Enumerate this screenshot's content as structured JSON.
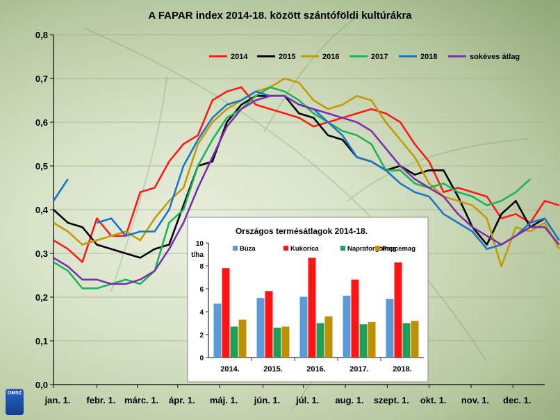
{
  "chart_data": [
    {
      "type": "line",
      "title": "A FAPAR index 2014-18. között szántóföldi kultúrákra",
      "ylim": [
        0,
        0.8
      ],
      "yticks": [
        "0,0",
        "0,1",
        "0,2",
        "0,3",
        "0,4",
        "0,5",
        "0,6",
        "0,7",
        "0,8"
      ],
      "xlim": [
        0,
        34
      ],
      "x_tick_labels": [
        "jan. 1.",
        "febr. 1.",
        "márc. 1.",
        "ápr. 1.",
        "máj. 1.",
        "jún. 1.",
        "júl. 1.",
        "aug. 1.",
        "szept. 1.",
        "okt. 1.",
        "nov. 1.",
        "dec. 1."
      ],
      "x_tick_positions": [
        0,
        3,
        5.8,
        8.6,
        11.5,
        14.5,
        17.3,
        20.2,
        23.1,
        26,
        28.9,
        31.8
      ],
      "legend_position": "top-right",
      "grid": "horizontal",
      "series": [
        {
          "name": "2014",
          "color": "#ff1a1a",
          "values": [
            0.33,
            0.31,
            0.28,
            0.38,
            0.34,
            0.34,
            0.44,
            0.45,
            0.51,
            0.55,
            0.57,
            0.65,
            0.67,
            0.68,
            0.64,
            0.63,
            0.62,
            0.61,
            0.59,
            0.6,
            0.61,
            0.62,
            0.63,
            0.62,
            0.6,
            0.55,
            0.51,
            0.44,
            0.45,
            0.44,
            0.43,
            0.38,
            0.39,
            0.37,
            0.42,
            0.41
          ]
        },
        {
          "name": "2015",
          "color": "#000000",
          "values": [
            0.4,
            0.37,
            0.36,
            0.32,
            0.31,
            0.3,
            0.29,
            0.31,
            0.32,
            0.41,
            0.5,
            0.51,
            0.6,
            0.64,
            0.66,
            0.66,
            0.66,
            0.62,
            0.61,
            0.57,
            0.56,
            0.52,
            0.51,
            0.49,
            0.5,
            0.48,
            0.49,
            0.49,
            0.43,
            0.36,
            0.32,
            0.39,
            0.42,
            0.36,
            0.38
          ]
        },
        {
          "name": "2016",
          "color": "#c49a00",
          "values": [
            0.37,
            0.35,
            0.32,
            0.33,
            0.34,
            0.35,
            0.33,
            0.38,
            0.42,
            0.45,
            0.55,
            0.6,
            0.63,
            0.65,
            0.67,
            0.68,
            0.7,
            0.69,
            0.65,
            0.63,
            0.64,
            0.66,
            0.65,
            0.6,
            0.56,
            0.52,
            0.46,
            0.43,
            0.42,
            0.41,
            0.38,
            0.27,
            0.36,
            0.35,
            0.37,
            0.31
          ]
        },
        {
          "name": "2017",
          "color": "#1db35a",
          "values": [
            0.28,
            0.26,
            0.22,
            0.22,
            0.23,
            0.24,
            0.23,
            0.26,
            0.37,
            0.4,
            0.5,
            0.56,
            0.61,
            0.63,
            0.66,
            0.68,
            0.67,
            0.65,
            0.62,
            0.6,
            0.58,
            0.57,
            0.55,
            0.49,
            0.49,
            0.46,
            0.45,
            0.46,
            0.44,
            0.43,
            0.41,
            0.42,
            0.44,
            0.47
          ]
        },
        {
          "name": "2018",
          "color": "#1a75c9",
          "values": [
            0.42,
            0.47,
            null,
            0.37,
            0.38,
            0.34,
            0.35,
            0.35,
            0.4,
            0.5,
            0.56,
            0.61,
            0.64,
            0.65,
            0.67,
            0.66,
            0.66,
            0.64,
            0.63,
            0.6,
            0.57,
            0.52,
            0.51,
            0.49,
            0.46,
            0.44,
            0.43,
            0.39,
            0.37,
            0.35,
            0.31,
            0.32,
            0.34,
            0.37,
            0.38,
            0.33
          ]
        },
        {
          "name": "sokéves átlag",
          "color": "#7b2fb0",
          "values": [
            0.29,
            0.27,
            0.24,
            0.24,
            0.23,
            0.23,
            0.24,
            0.26,
            0.31,
            0.37,
            0.45,
            0.52,
            0.59,
            0.63,
            0.65,
            0.66,
            0.66,
            0.64,
            0.63,
            0.62,
            0.61,
            0.6,
            0.58,
            0.54,
            0.5,
            0.47,
            0.45,
            0.43,
            0.39,
            0.36,
            0.34,
            0.32,
            0.34,
            0.36,
            0.36,
            0.32
          ]
        }
      ]
    },
    {
      "type": "bar",
      "title": "Országos termésátlagok 2014-18.",
      "ylabel": "t/ha",
      "ylim": [
        0,
        10
      ],
      "yticks": [
        "0",
        "2",
        "4",
        "6",
        "8",
        "10"
      ],
      "categories": [
        "2014.",
        "2015.",
        "2016.",
        "2017.",
        "2018."
      ],
      "series": [
        {
          "name": "Búza",
          "color": "#5b9bd5",
          "values": [
            4.7,
            5.2,
            5.3,
            5.4,
            5.1
          ]
        },
        {
          "name": "Kukorica",
          "color": "#ff1414",
          "values": [
            7.8,
            5.8,
            8.7,
            6.8,
            8.3
          ]
        },
        {
          "name": "Napraforgómag",
          "color": "#1f9e55",
          "values": [
            2.7,
            2.6,
            3.0,
            2.9,
            3.0
          ]
        },
        {
          "name": "Repcemag",
          "color": "#bf9000",
          "values": [
            3.3,
            2.7,
            3.6,
            3.1,
            3.2
          ]
        }
      ]
    }
  ],
  "logo_text": "OMSZ"
}
